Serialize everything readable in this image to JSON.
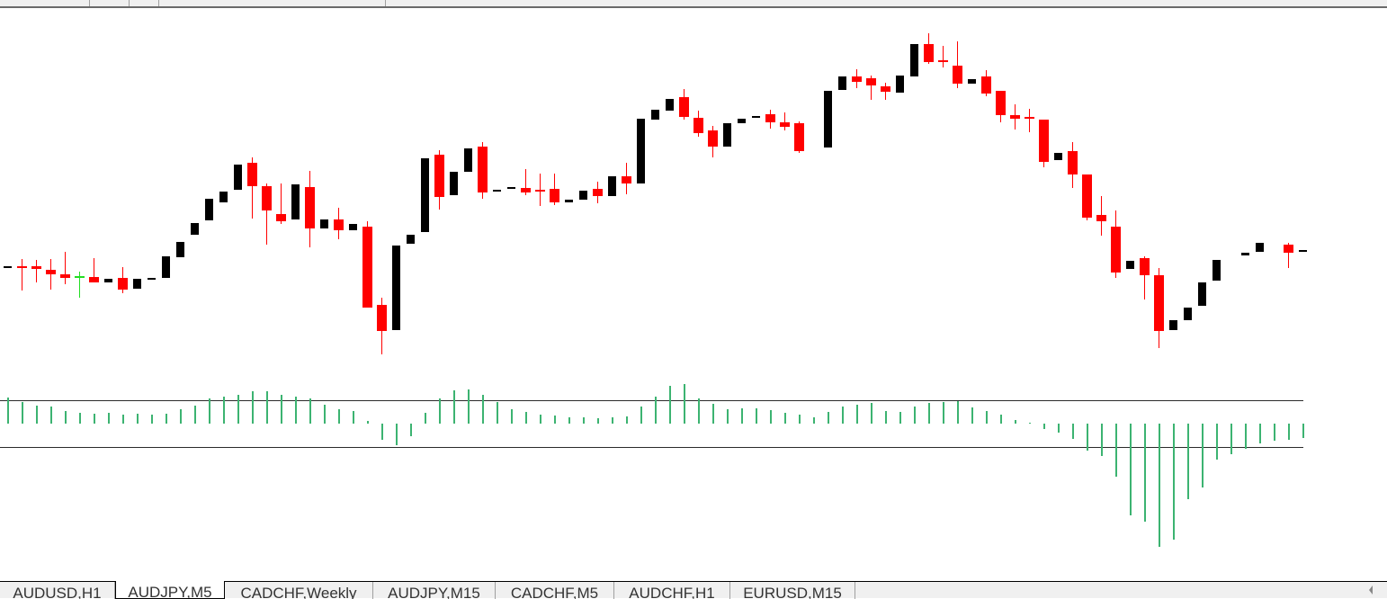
{
  "tabs": [
    {
      "label": "AUDUSD,H1",
      "active": false
    },
    {
      "label": "AUDJPY,M5",
      "active": true
    },
    {
      "label": "CADCHF,Weekly",
      "active": false
    },
    {
      "label": "AUDJPY,M15",
      "active": false
    },
    {
      "label": "CADCHF,M5",
      "active": false
    },
    {
      "label": "AUDCHF,H1",
      "active": false
    },
    {
      "label": "EURUSD,M15",
      "active": false
    }
  ],
  "colors": {
    "bull_candle": "#000000",
    "bear_candle": "#ff0000",
    "doji_candle": "#22dd22",
    "histogram": "#3cb371",
    "level_line": "#a0187a"
  },
  "chart_data": [
    {
      "type": "candlestick",
      "format": "[open, high, low, close]",
      "candles": [
        [
          97.04,
          97.04,
          97.04,
          97.04
        ],
        [
          97.04,
          97.12,
          96.77,
          97.02
        ],
        [
          97.04,
          97.11,
          96.86,
          97.01
        ],
        [
          97.0,
          97.12,
          96.78,
          96.95
        ],
        [
          96.95,
          97.2,
          96.84,
          96.91
        ],
        [
          96.93,
          96.98,
          96.69,
          96.93,
          "g"
        ],
        [
          96.92,
          97.13,
          96.86,
          96.86
        ],
        [
          96.86,
          96.9,
          96.86,
          96.9
        ],
        [
          96.91,
          97.03,
          96.74,
          96.78
        ],
        [
          96.79,
          96.9,
          96.79,
          96.9
        ],
        [
          96.91,
          96.91,
          96.91,
          96.91
        ],
        [
          96.91,
          97.15,
          96.91,
          97.15
        ],
        [
          97.14,
          97.31,
          97.14,
          97.31
        ],
        [
          97.39,
          97.52,
          97.39,
          97.52
        ],
        [
          97.55,
          97.79,
          97.55,
          97.79
        ],
        [
          97.75,
          97.87,
          97.75,
          97.87
        ],
        [
          97.89,
          98.17,
          97.89,
          98.17
        ],
        [
          98.19,
          98.25,
          97.57,
          97.93
        ],
        [
          97.93,
          97.96,
          97.28,
          97.66
        ],
        [
          97.62,
          97.96,
          97.51,
          97.54
        ],
        [
          97.56,
          97.95,
          97.56,
          97.95
        ],
        [
          97.92,
          98.1,
          97.25,
          97.46
        ],
        [
          97.46,
          97.56,
          97.46,
          97.56
        ],
        [
          97.56,
          97.69,
          97.34,
          97.44
        ],
        [
          97.44,
          97.51,
          97.44,
          97.51
        ],
        [
          97.48,
          97.54,
          96.58,
          96.58
        ],
        [
          96.61,
          96.69,
          96.06,
          96.32
        ],
        [
          96.33,
          97.27,
          96.33,
          97.27
        ],
        [
          97.29,
          97.39,
          97.29,
          97.39
        ],
        [
          97.42,
          98.24,
          97.42,
          98.24
        ],
        [
          98.28,
          98.33,
          97.67,
          97.81
        ],
        [
          97.83,
          98.09,
          97.83,
          98.09
        ],
        [
          98.09,
          98.35,
          98.09,
          98.35
        ],
        [
          98.37,
          98.42,
          97.79,
          97.86
        ],
        [
          97.89,
          97.89,
          97.89,
          97.89
        ],
        [
          97.9,
          97.92,
          97.9,
          97.92
        ],
        [
          97.91,
          98.12,
          97.83,
          97.86
        ],
        [
          97.89,
          98.07,
          97.71,
          97.87
        ],
        [
          97.9,
          98.07,
          97.72,
          97.75
        ],
        [
          97.75,
          97.78,
          97.75,
          97.78
        ],
        [
          97.78,
          97.88,
          97.78,
          97.88
        ],
        [
          97.9,
          97.98,
          97.74,
          97.82
        ],
        [
          97.82,
          98.04,
          97.82,
          98.04
        ],
        [
          98.04,
          98.19,
          97.84,
          97.96
        ],
        [
          97.96,
          98.68,
          97.96,
          98.68
        ],
        [
          98.67,
          98.78,
          98.67,
          98.78
        ],
        [
          98.77,
          98.9,
          98.77,
          98.9
        ],
        [
          98.92,
          99.01,
          98.67,
          98.7
        ],
        [
          98.69,
          98.77,
          98.48,
          98.52
        ],
        [
          98.55,
          98.6,
          98.25,
          98.37
        ],
        [
          98.37,
          98.63,
          98.37,
          98.63
        ],
        [
          98.63,
          98.68,
          98.63,
          98.68
        ],
        [
          98.71,
          98.71,
          98.71,
          98.71
        ],
        [
          98.73,
          98.78,
          98.57,
          98.64
        ],
        [
          98.64,
          98.75,
          98.55,
          98.59
        ],
        [
          98.63,
          98.65,
          98.3,
          98.32
        ],
        null,
        [
          98.36,
          98.99,
          98.36,
          98.99
        ],
        [
          99.0,
          99.15,
          99.0,
          99.15
        ],
        [
          99.15,
          99.23,
          99.02,
          99.09
        ],
        [
          99.13,
          99.16,
          98.89,
          99.05
        ],
        [
          99.04,
          99.08,
          98.89,
          98.98
        ],
        [
          98.97,
          99.16,
          98.97,
          99.16
        ],
        [
          99.15,
          99.51,
          99.15,
          99.51
        ],
        [
          99.51,
          99.63,
          99.29,
          99.31
        ],
        [
          99.33,
          99.49,
          99.25,
          99.31
        ],
        [
          99.27,
          99.54,
          99.02,
          99.07
        ],
        [
          99.07,
          99.12,
          99.07,
          99.12
        ],
        [
          99.15,
          99.22,
          98.93,
          98.96
        ],
        [
          98.99,
          98.99,
          98.64,
          98.72
        ],
        [
          98.72,
          98.84,
          98.56,
          98.68
        ],
        [
          98.7,
          98.79,
          98.53,
          98.68
        ],
        [
          98.67,
          98.67,
          98.14,
          98.2
        ],
        [
          98.22,
          98.3,
          98.22,
          98.3
        ],
        [
          98.32,
          98.42,
          97.91,
          98.06
        ],
        [
          98.06,
          98.06,
          97.55,
          97.58
        ],
        [
          97.61,
          97.82,
          97.38,
          97.54
        ],
        [
          97.48,
          97.66,
          96.91,
          96.97
        ],
        [
          97.01,
          97.1,
          97.01,
          97.1
        ],
        [
          97.13,
          97.15,
          96.67,
          96.94
        ],
        [
          96.94,
          97.02,
          96.13,
          96.32
        ],
        [
          96.33,
          96.44,
          96.33,
          96.44
        ],
        [
          96.44,
          96.58,
          96.44,
          96.58
        ],
        [
          96.6,
          96.86,
          96.6,
          96.86
        ],
        [
          96.88,
          97.11,
          96.88,
          97.11
        ],
        null,
        [
          97.16,
          97.19,
          97.16,
          97.19
        ],
        [
          97.2,
          97.3,
          97.2,
          97.3
        ],
        null,
        [
          97.28,
          97.3,
          97.02,
          97.19
        ],
        [
          97.22,
          97.22,
          97.22,
          97.22
        ]
      ],
      "grid": false
    },
    {
      "type": "histogram",
      "levels": [
        0.26,
        -0.26
      ],
      "values": [
        0.29,
        0.24,
        0.2,
        0.19,
        0.14,
        0.12,
        0.11,
        0.12,
        0.1,
        0.11,
        0.1,
        0.11,
        0.16,
        0.2,
        0.28,
        0.3,
        0.32,
        0.36,
        0.36,
        0.32,
        0.3,
        0.28,
        0.21,
        0.16,
        0.14,
        0.03,
        -0.18,
        -0.24,
        -0.14,
        0.12,
        0.28,
        0.37,
        0.38,
        0.32,
        0.24,
        0.16,
        0.13,
        0.1,
        0.09,
        0.07,
        0.07,
        0.06,
        0.07,
        0.08,
        0.19,
        0.3,
        0.42,
        0.44,
        0.28,
        0.22,
        0.16,
        0.17,
        0.17,
        0.15,
        0.12,
        0.1,
        0.07,
        0.13,
        0.19,
        0.21,
        0.23,
        0.14,
        0.13,
        0.19,
        0.23,
        0.24,
        0.25,
        0.18,
        0.14,
        0.1,
        0.04,
        0.01,
        -0.06,
        -0.1,
        -0.17,
        -0.3,
        -0.36,
        -0.59,
        -1.02,
        -1.09,
        -1.37,
        -1.29,
        -0.84,
        -0.71,
        -0.4,
        -0.34,
        -0.28,
        -0.22,
        -0.19,
        -0.18,
        -0.16
      ],
      "grid": false
    }
  ]
}
